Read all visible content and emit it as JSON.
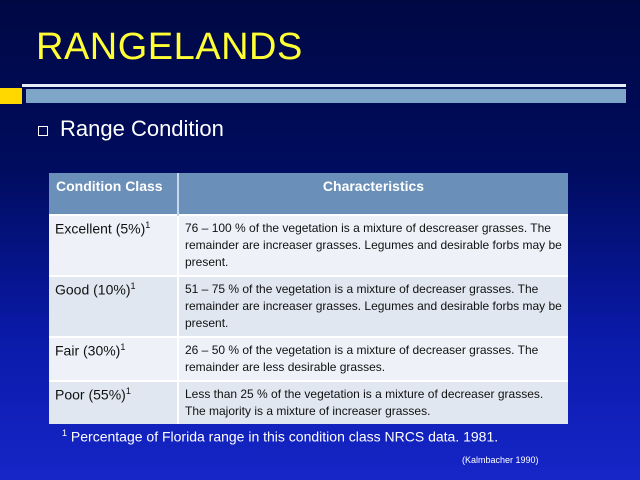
{
  "title": "RANGELANDS",
  "bullet": "Range Condition",
  "table": {
    "headers": [
      "Condition Class",
      "Characteristics"
    ],
    "rows": [
      {
        "class": "Excellent (5%)",
        "sup": "1",
        "text": "76 – 100 % of the vegetation is a mixture of descreaser grasses.  The remainder are increaser grasses. Legumes and desirable forbs may be present."
      },
      {
        "class": "Good (10%)",
        "sup": "1",
        "text": "51 – 75 % of the vegetation is a mixture of decreaser grasses.  The remainder are increaser grasses.  Legumes and desirable forbs may be present."
      },
      {
        "class": "Fair (30%)",
        "sup": "1",
        "text": "26 – 50 % of the vegetation is a mixture of decreaser grasses.  The remainder are less desirable grasses."
      },
      {
        "class": "Poor (55%)",
        "sup": "1",
        "text": "Less than 25 % of the vegetation is a mixture of decreaser grasses.  The majority is a mixture of increaser grasses."
      }
    ]
  },
  "footnote": {
    "mark": "1",
    "text": "Percentage of Florida range in this condition class NRCS data. 1981."
  },
  "citation": "(Kalmbacher 1990)",
  "colors": {
    "background": "#0a1aa8",
    "title": "#ffff33",
    "header": "#6a8fb8",
    "accent_block": "#ffd800",
    "rule_bar": "#7fa6c8"
  }
}
